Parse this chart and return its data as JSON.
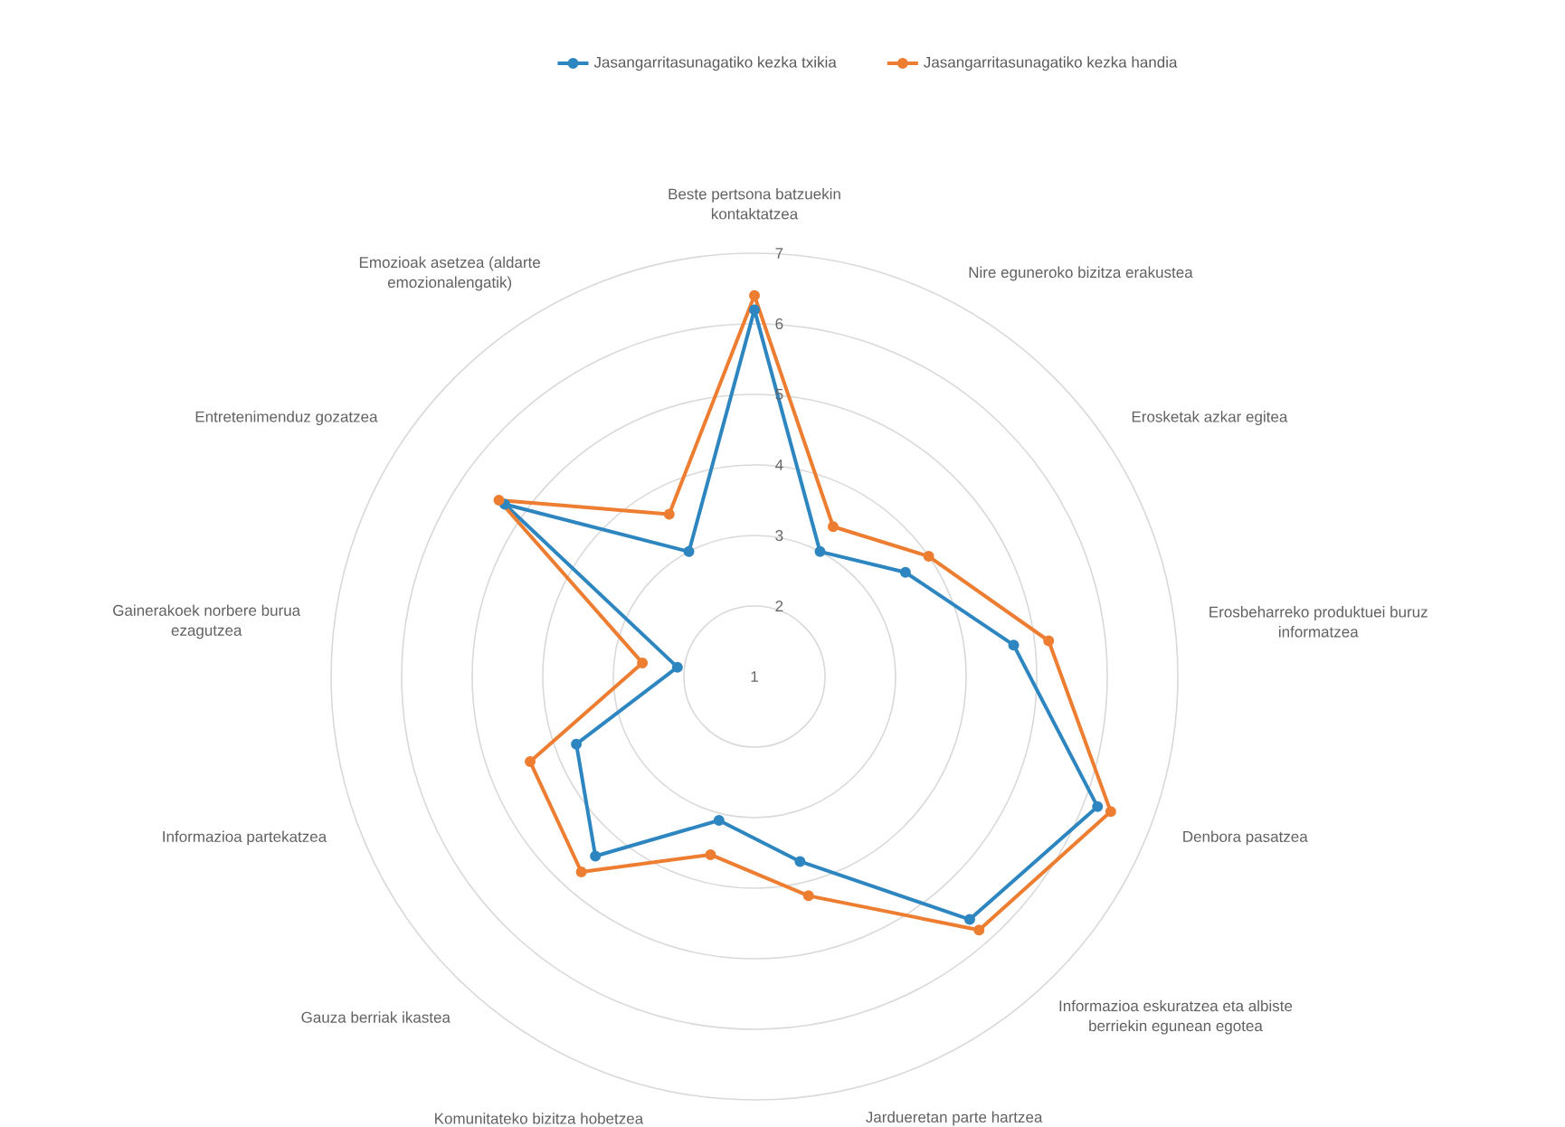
{
  "chart_data": {
    "type": "radar",
    "categories": [
      "Beste pertsona batzuekin kontaktatzea",
      "Nire eguneroko bizitza erakustea",
      "Erosketak azkar egitea",
      "Erosbeharreko produktuei buruz informatzea",
      "Denbora pasatzea",
      "Informazioa eskuratzea eta albiste berriekin egunean egotea",
      "Jardueretan parte hartzea",
      "Komunitateko bizitza hobetzea",
      "Gauza berriak ikastea",
      "Informazioa partekatzea",
      "Gainerakoek norbere burua ezagutzea",
      "Entretenimenduz gozatzea",
      "Emozioak asetzea (aldarte emozionalengatik)"
    ],
    "series": [
      {
        "name": "Jasangarritasunagatiko kezka txikia",
        "color": "#2e86c1",
        "values": [
          6.2,
          3.0,
          3.6,
          4.7,
          6.2,
          5.6,
          3.7,
          3.1,
          4.4,
          3.7,
          2.1,
          5.3,
          3.0
        ]
      },
      {
        "name": "Jasangarritasunagatiko kezka handia",
        "color": "#ed7d31",
        "values": [
          6.4,
          3.4,
          4.0,
          5.2,
          6.4,
          5.8,
          4.2,
          3.6,
          4.7,
          4.4,
          2.6,
          5.4,
          3.6
        ]
      }
    ],
    "ylim": [
      1,
      7
    ],
    "yticks": [
      1,
      2,
      3,
      4,
      5,
      6,
      7
    ],
    "grid": true,
    "legend": "top",
    "marker": "circle",
    "line_style": "solid"
  }
}
